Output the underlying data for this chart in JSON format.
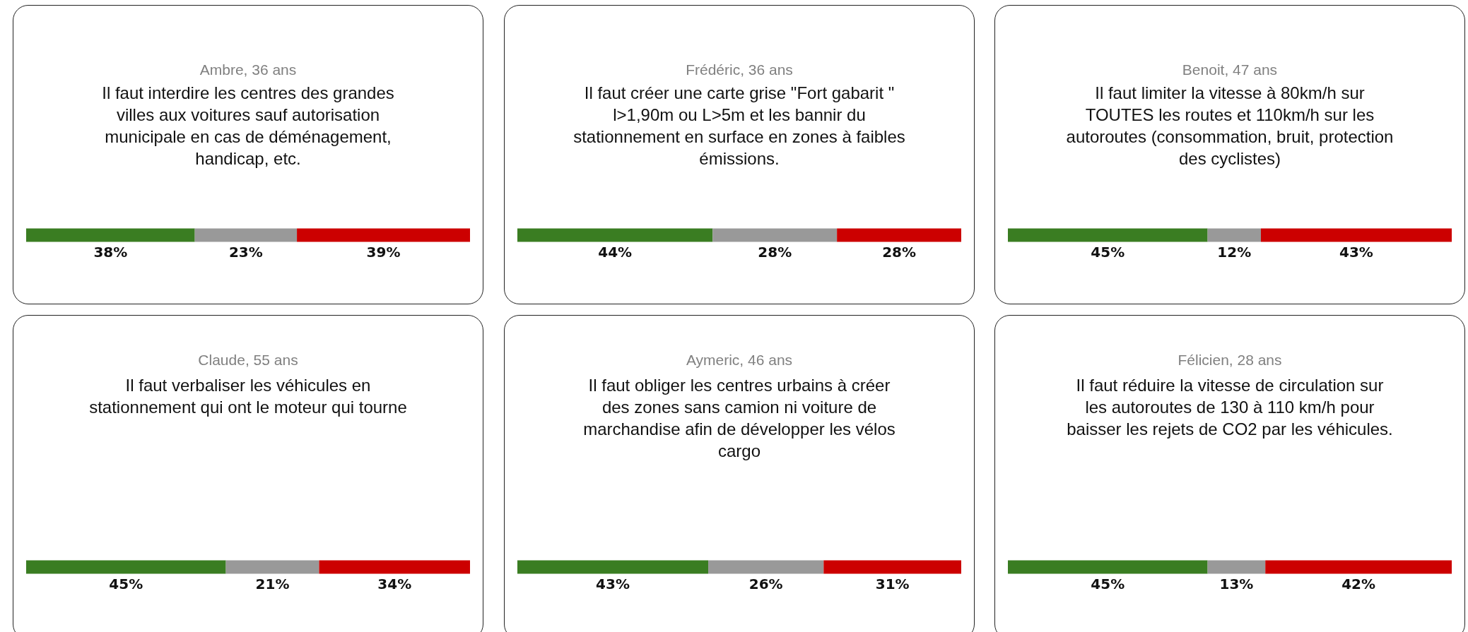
{
  "chart_data": [
    {
      "type": "bar",
      "orientation": "horizontal",
      "stacked": true,
      "title": "Ambre, 36 ans",
      "subtitle": "Il faut interdire les centres des grandes villes aux voitures sauf autorisation municipale en cas de déménagement, handicap, etc.",
      "categories": [
        null
      ],
      "series": [
        {
          "color": "#3a7d22",
          "values": [
            38
          ],
          "value_labels": [
            "38%"
          ]
        },
        {
          "color": "#999999",
          "values": [
            23
          ],
          "value_labels": [
            "23%"
          ]
        },
        {
          "color": "#cc0000",
          "values": [
            39
          ],
          "value_labels": [
            "39%"
          ]
        }
      ]
    },
    {
      "type": "bar",
      "orientation": "horizontal",
      "stacked": true,
      "title": "Frédéric, 36 ans",
      "subtitle": "Il faut créer une carte grise \"Fort gabarit \" l>1,90m ou L>5m et les bannir du stationnement en surface en zones à faibles émissions.",
      "categories": [
        null
      ],
      "series": [
        {
          "color": "#3a7d22",
          "values": [
            44
          ],
          "value_labels": [
            "44%"
          ]
        },
        {
          "color": "#999999",
          "values": [
            28
          ],
          "value_labels": [
            "28%"
          ]
        },
        {
          "color": "#cc0000",
          "values": [
            28
          ],
          "value_labels": [
            "28%"
          ]
        }
      ]
    },
    {
      "type": "bar",
      "orientation": "horizontal",
      "stacked": true,
      "title": "Benoit, 47 ans",
      "subtitle": "Il faut limiter la vitesse à 80km/h sur TOUTES les routes et 110km/h sur les autoroutes (consommation, bruit, protection des cyclistes)",
      "categories": [
        null
      ],
      "series": [
        {
          "color": "#3a7d22",
          "values": [
            45
          ],
          "value_labels": [
            "45%"
          ]
        },
        {
          "color": "#999999",
          "values": [
            12
          ],
          "value_labels": [
            "12%"
          ]
        },
        {
          "color": "#cc0000",
          "values": [
            43
          ],
          "value_labels": [
            "43%"
          ]
        }
      ]
    },
    {
      "type": "bar",
      "orientation": "horizontal",
      "stacked": true,
      "title": "Claude, 55 ans",
      "subtitle": "Il faut verbaliser les véhicules en stationnement qui ont le moteur qui tourne",
      "categories": [
        null
      ],
      "series": [
        {
          "color": "#3a7d22",
          "values": [
            45
          ],
          "value_labels": [
            "45%"
          ]
        },
        {
          "color": "#999999",
          "values": [
            21
          ],
          "value_labels": [
            "21%"
          ]
        },
        {
          "color": "#cc0000",
          "values": [
            34
          ],
          "value_labels": [
            "34%"
          ]
        }
      ]
    },
    {
      "type": "bar",
      "orientation": "horizontal",
      "stacked": true,
      "title": "Aymeric, 46 ans",
      "subtitle": "Il faut obliger les centres urbains à créer des zones sans camion ni voiture de marchandise afin de développer les vélos cargo",
      "categories": [
        null
      ],
      "series": [
        {
          "color": "#3a7d22",
          "values": [
            43
          ],
          "value_labels": [
            "43%"
          ]
        },
        {
          "color": "#999999",
          "values": [
            26
          ],
          "value_labels": [
            "26%"
          ]
        },
        {
          "color": "#cc0000",
          "values": [
            31
          ],
          "value_labels": [
            "31%"
          ]
        }
      ]
    },
    {
      "type": "bar",
      "orientation": "horizontal",
      "stacked": true,
      "title": "Félicien, 28 ans",
      "subtitle": "Il faut réduire la vitesse de circulation sur les autoroutes de 130 à 110 km/h pour baisser les rejets de CO2 par les véhicules.",
      "categories": [
        null
      ],
      "series": [
        {
          "color": "#3a7d22",
          "values": [
            45
          ],
          "value_labels": [
            "45%"
          ]
        },
        {
          "color": "#999999",
          "values": [
            13
          ],
          "value_labels": [
            "13%"
          ]
        },
        {
          "color": "#cc0000",
          "values": [
            42
          ],
          "value_labels": [
            "42%"
          ]
        }
      ]
    }
  ]
}
